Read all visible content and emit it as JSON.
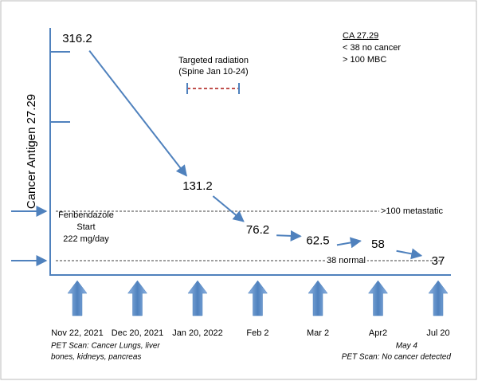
{
  "chart_data": {
    "type": "line",
    "y_label": "Cancer Antigen 27.29",
    "categories": [
      "Nov 22, 2021",
      "Dec 20, 2021",
      "Jan 20, 2022",
      "Feb 2",
      "Mar 2",
      "Apr2",
      "Jul 20"
    ],
    "values": [
      316.2,
      null,
      131.2,
      76.2,
      62.5,
      58,
      37
    ],
    "color": "#4f81bd",
    "ylim": [
      20,
      330
    ],
    "reference_lines": [
      {
        "value": 100,
        "label": ">100 metastatic"
      },
      {
        "value": 38,
        "label": "38 normal"
      }
    ],
    "legend_box": {
      "title": "CA 27.29",
      "lines": [
        "< 38 no cancer",
        "> 100 MBC"
      ]
    },
    "annotations": {
      "radiation": [
        "Targeted radiation",
        "(Spine Jan 10-24)"
      ],
      "treatment": [
        "Fenbendazole",
        "Start",
        "222 mg/day"
      ],
      "pet_start": [
        "PET Scan: Cancer Lungs, liver",
        "bones, kidneys, pancreas"
      ],
      "pet_end": [
        "May 4",
        "PET Scan: No cancer detected"
      ]
    }
  }
}
